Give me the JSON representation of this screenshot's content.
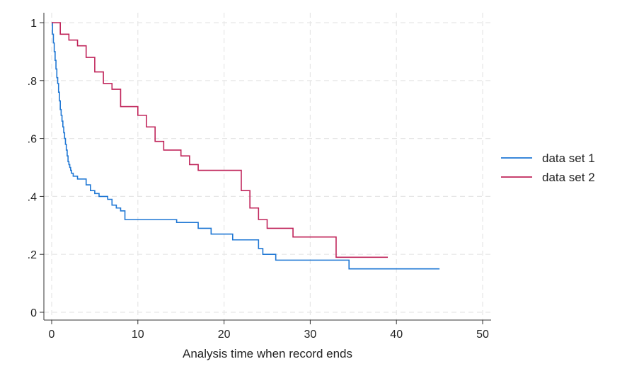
{
  "chart_data": {
    "type": "line",
    "step": true,
    "title": "",
    "xlabel": "Analysis time when record ends",
    "ylabel": "",
    "xlim": [
      0,
      50
    ],
    "ylim": [
      0,
      1
    ],
    "xticks": [
      0,
      10,
      20,
      30,
      40,
      50
    ],
    "xtick_labels": [
      "0",
      "10",
      "20",
      "30",
      "40",
      "50"
    ],
    "yticks": [
      0,
      0.2,
      0.4,
      0.6,
      0.8,
      1
    ],
    "ytick_labels": [
      "0",
      ".2",
      ".4",
      ".6",
      ".8",
      "1"
    ],
    "grid": true,
    "legend_position": "right",
    "series": [
      {
        "name": "data set 1",
        "color": "#1f77d4",
        "x": [
          0,
          0.1,
          0.2,
          0.3,
          0.4,
          0.5,
          0.6,
          0.7,
          0.8,
          0.9,
          1.0,
          1.1,
          1.2,
          1.3,
          1.4,
          1.5,
          1.6,
          1.7,
          1.8,
          1.9,
          2.0,
          2.1,
          2.2,
          2.3,
          2.5,
          2.7,
          3.0,
          4.0,
          4.5,
          5.0,
          5.5,
          6.5,
          7.0,
          7.5,
          8.0,
          8.5,
          14.5,
          17.0,
          18.5,
          21.0,
          24.0,
          24.5,
          26.0,
          34.5,
          45.0
        ],
        "y": [
          1.0,
          0.96,
          0.93,
          0.9,
          0.87,
          0.84,
          0.81,
          0.79,
          0.76,
          0.73,
          0.7,
          0.68,
          0.66,
          0.64,
          0.62,
          0.6,
          0.58,
          0.56,
          0.54,
          0.52,
          0.51,
          0.5,
          0.49,
          0.48,
          0.47,
          0.47,
          0.46,
          0.44,
          0.42,
          0.41,
          0.4,
          0.39,
          0.37,
          0.36,
          0.35,
          0.32,
          0.31,
          0.29,
          0.27,
          0.25,
          0.22,
          0.2,
          0.18,
          0.15,
          0.15
        ]
      },
      {
        "name": "data set 2",
        "color": "#c0245a",
        "x": [
          0,
          1.0,
          2.0,
          3.0,
          4.0,
          5.0,
          6.0,
          7.0,
          8.0,
          10.0,
          11.0,
          12.0,
          13.0,
          15.0,
          16.0,
          17.0,
          22.0,
          23.0,
          24.0,
          25.0,
          28.0,
          33.0,
          39.0
        ],
        "y": [
          1.0,
          0.96,
          0.94,
          0.92,
          0.88,
          0.83,
          0.79,
          0.77,
          0.71,
          0.68,
          0.64,
          0.59,
          0.56,
          0.54,
          0.51,
          0.49,
          0.42,
          0.36,
          0.32,
          0.29,
          0.26,
          0.19,
          0.19
        ]
      }
    ]
  }
}
